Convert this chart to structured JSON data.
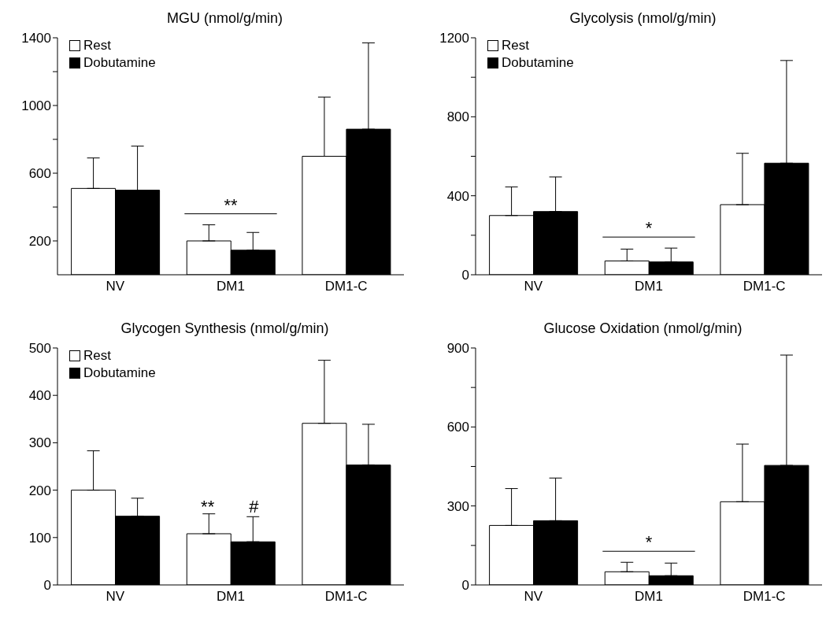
{
  "chart_data": [
    {
      "type": "bar",
      "title": "MGU (nmol/g/min)",
      "categories": [
        "NV",
        "DM1",
        "DM1-C"
      ],
      "series": [
        {
          "name": "Rest",
          "color": "#ffffff",
          "values": [
            510,
            200,
            700
          ],
          "errors": [
            [
              510,
              690
            ],
            [
              200,
              295
            ],
            [
              700,
              1050
            ]
          ]
        },
        {
          "name": "Dobutamine",
          "color": "#000000",
          "values": [
            500,
            145,
            860
          ],
          "errors": [
            [
              500,
              760
            ],
            [
              145,
              250
            ],
            [
              860,
              1370
            ]
          ]
        }
      ],
      "ylim": [
        0,
        1400
      ],
      "yticks": [
        {
          "value": 200,
          "label": "200"
        },
        {
          "value": 400,
          "label": null
        },
        {
          "value": 600,
          "label": "600"
        },
        {
          "value": 800,
          "label": null
        },
        {
          "value": 1000,
          "label": "1000"
        },
        {
          "value": 1200,
          "label": null
        },
        {
          "value": 1400,
          "label": "1400"
        }
      ],
      "annotations": [
        "**"
      ],
      "legend": "top left",
      "grid": false
    },
    {
      "type": "bar",
      "title": "Glycolysis (nmol/g/min)",
      "categories": [
        "NV",
        "DM1",
        "DM1-C"
      ],
      "series": [
        {
          "name": "Rest",
          "color": "#ffffff",
          "values": [
            300,
            70,
            355
          ],
          "errors": [
            [
              300,
              445
            ],
            [
              70,
              130
            ],
            [
              355,
              615
            ]
          ]
        },
        {
          "name": "Dobutamine",
          "color": "#000000",
          "values": [
            320,
            65,
            565
          ],
          "errors": [
            [
              320,
              495
            ],
            [
              65,
              135
            ],
            [
              565,
              1085
            ]
          ]
        }
      ],
      "ylim": [
        0,
        1200
      ],
      "yticks": [
        0,
        {
          "value": 200,
          "label": null
        },
        400,
        {
          "value": 600,
          "label": null
        },
        800,
        {
          "value": 1000,
          "label": null
        },
        1200
      ],
      "annotations": [
        "*"
      ],
      "legend": "top left",
      "grid": false
    },
    {
      "type": "bar",
      "title": "Glycogen Synthesis (nmol/g/min)",
      "categories": [
        "NV",
        "DM1",
        "DM1-C"
      ],
      "series": [
        {
          "name": "Rest",
          "color": "#ffffff",
          "values": [
            200,
            108,
            341
          ],
          "errors": [
            [
              200,
              283
            ],
            [
              108,
              150
            ],
            [
              341,
              474
            ]
          ]
        },
        {
          "name": "Dobutamine",
          "color": "#000000",
          "values": [
            145,
            91,
            253
          ],
          "errors": [
            [
              145,
              183
            ],
            [
              91,
              144
            ],
            [
              253,
              339
            ]
          ]
        }
      ],
      "ylim": [
        0,
        500
      ],
      "yticks": [
        0,
        100,
        200,
        300,
        400,
        500
      ],
      "annotations": [
        "**",
        "#"
      ],
      "legend": "top left",
      "grid": false
    },
    {
      "type": "bar",
      "title": "Glucose Oxidation (nmol/g/min)",
      "categories": [
        "NV",
        "DM1",
        "DM1-C"
      ],
      "series": [
        {
          "color": "#ffffff",
          "values": [
            226,
            50,
            316
          ],
          "errors": [
            [
              226,
              366
            ],
            [
              50,
              86
            ],
            [
              316,
              535
            ]
          ]
        },
        {
          "color": "#000000",
          "values": [
            244,
            35,
            454
          ],
          "errors": [
            [
              244,
              406
            ],
            [
              35,
              83
            ],
            [
              454,
              873
            ]
          ]
        }
      ],
      "ylim": [
        0,
        900
      ],
      "yticks": [
        0,
        {
          "value": 150,
          "label": null
        },
        300,
        {
          "value": 450,
          "label": null
        },
        600,
        {
          "value": 750,
          "label": null
        },
        900
      ],
      "annotations": [
        "*"
      ],
      "legend": false,
      "grid": false
    }
  ]
}
